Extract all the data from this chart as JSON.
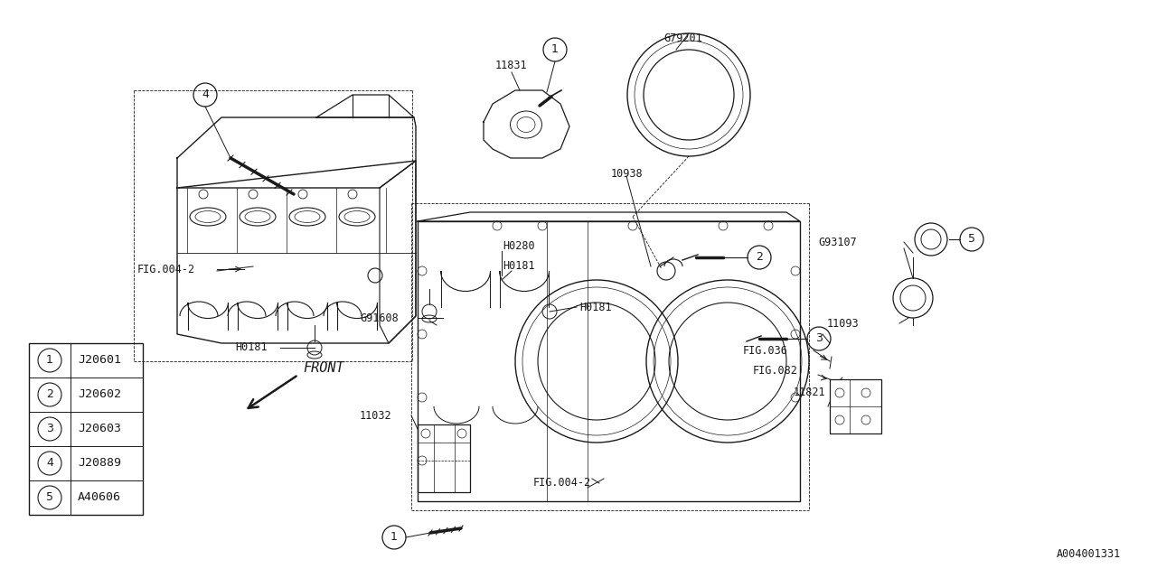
{
  "bg_color": "#ffffff",
  "line_color": "#1a1a1a",
  "diagram_id": "A004001331",
  "legend_items": [
    {
      "num": "1",
      "code": "J20601"
    },
    {
      "num": "2",
      "code": "J20602"
    },
    {
      "num": "3",
      "code": "J20603"
    },
    {
      "num": "4",
      "code": "J20889"
    },
    {
      "num": "5",
      "code": "A40606"
    }
  ],
  "fig_width": 12.8,
  "fig_height": 6.4,
  "dpi": 100
}
